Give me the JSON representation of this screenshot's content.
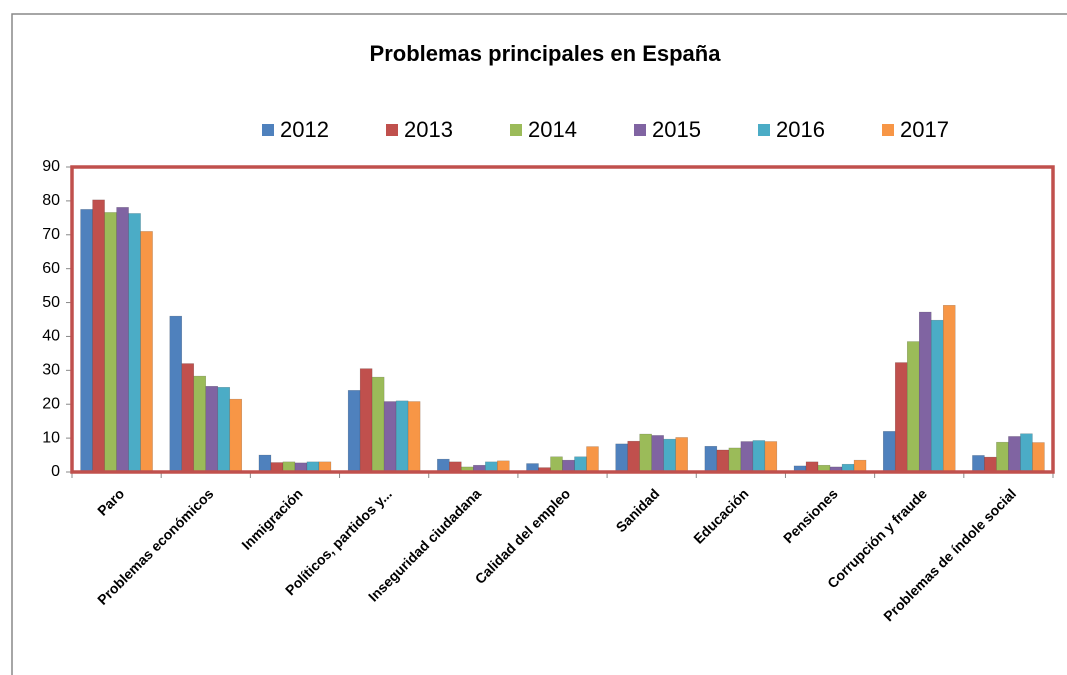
{
  "chart_data": {
    "type": "bar",
    "title": "Problemas principales en España",
    "categories": [
      "Paro",
      "Problemas económicos",
      "Inmigración",
      "Políticos, partidos y...",
      "Inseguridad ciudadana",
      "Calidad del empleo",
      "Sanidad",
      "Educación",
      "Pensiones",
      "Corrupción y fraude",
      "Problemas de índole social"
    ],
    "series": [
      {
        "name": "2012",
        "color": "#4f81bd",
        "values": [
          77.5,
          46,
          5,
          24.1,
          3.8,
          2.5,
          8.3,
          7.6,
          1.8,
          12,
          4.9
        ]
      },
      {
        "name": "2013",
        "color": "#c0504d",
        "values": [
          80.3,
          32,
          2.8,
          30.5,
          3,
          1.3,
          9.1,
          6.5,
          3,
          32.3,
          4.4
        ]
      },
      {
        "name": "2014",
        "color": "#9bbb59",
        "values": [
          76.6,
          28.3,
          3,
          28,
          1.5,
          4.5,
          11.2,
          7.1,
          2,
          38.5,
          8.8
        ]
      },
      {
        "name": "2015",
        "color": "#8064a2",
        "values": [
          78.1,
          25.3,
          2.7,
          20.8,
          2,
          3.5,
          10.8,
          9,
          1.5,
          47.2,
          10.5
        ]
      },
      {
        "name": "2016",
        "color": "#4bacc6",
        "values": [
          76.3,
          25,
          3,
          21,
          3,
          4.5,
          9.7,
          9.3,
          2.3,
          44.8,
          11.3
        ]
      },
      {
        "name": "2017",
        "color": "#f79646",
        "values": [
          71,
          21.5,
          3,
          20.8,
          3.3,
          7.5,
          10.2,
          9,
          3.5,
          49.2,
          8.7
        ]
      }
    ],
    "ylim": [
      0,
      90
    ],
    "yticks": [
      0,
      10,
      20,
      30,
      40,
      50,
      60,
      70,
      80,
      90
    ]
  }
}
